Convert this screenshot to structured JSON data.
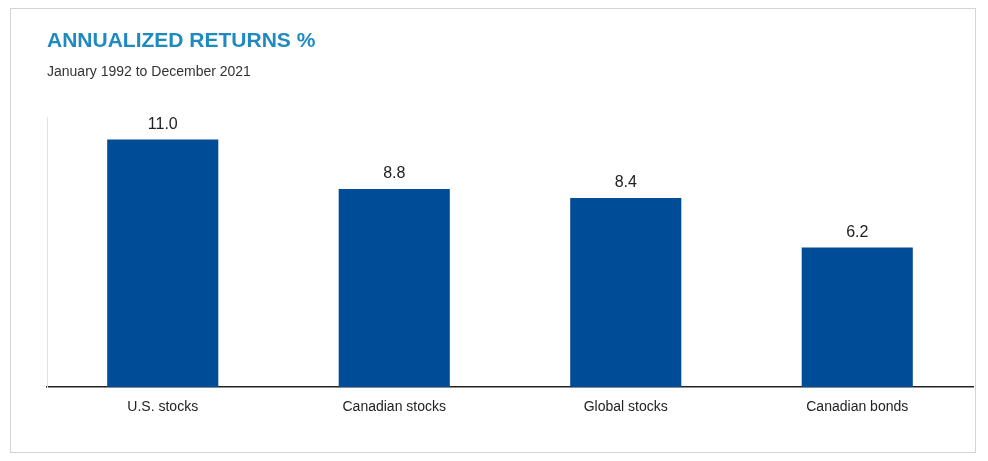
{
  "chart_data": {
    "type": "bar",
    "title": "ANNUALIZED RETURNS %",
    "subtitle": "January 1992 to December 2021",
    "categories": [
      "U.S. stocks",
      "Canadian stocks",
      "Global stocks",
      "Canadian bonds"
    ],
    "values": [
      11.0,
      8.8,
      8.4,
      6.2
    ],
    "value_labels": [
      "11.0",
      "8.8",
      "8.4",
      "6.2"
    ],
    "color": "#004c97",
    "ylim": [
      0,
      12
    ],
    "grid": false,
    "data_labels": true,
    "tick_labels": "x"
  }
}
